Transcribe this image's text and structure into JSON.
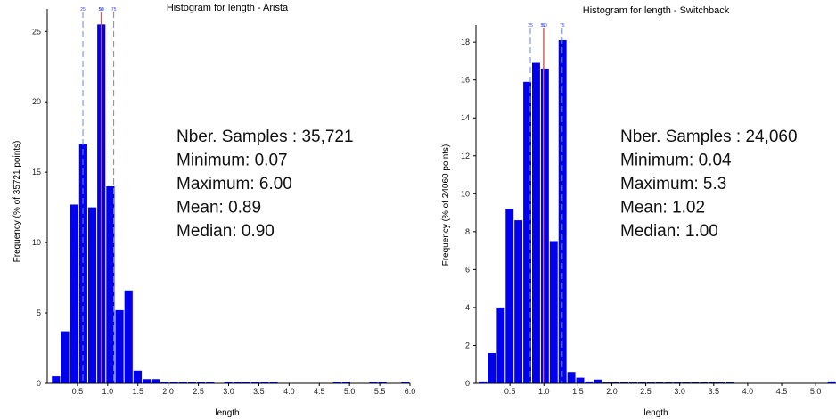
{
  "chart_data": [
    {
      "type": "bar",
      "title": "Histogram for length - Arista",
      "xlabel": "length",
      "ylabel": "Frequency (% of 35721 points)",
      "xlim": [
        0,
        6.0
      ],
      "ylim": [
        0,
        26.6
      ],
      "xticks": [
        "0.5",
        "1.0",
        "1.5",
        "2.0",
        "2.5",
        "3.0",
        "3.5",
        "4.0",
        "4.5",
        "5.0",
        "5.5",
        "6.0"
      ],
      "yticks": [
        "0",
        "5",
        "10",
        "15",
        "20",
        "25"
      ],
      "bin_width": 0.15,
      "bins": [
        {
          "x": 0.07,
          "y": 0.5
        },
        {
          "x": 0.22,
          "y": 3.7
        },
        {
          "x": 0.37,
          "y": 12.7
        },
        {
          "x": 0.52,
          "y": 17.0
        },
        {
          "x": 0.67,
          "y": 12.5
        },
        {
          "x": 0.82,
          "y": 25.5
        },
        {
          "x": 0.97,
          "y": 14.0
        },
        {
          "x": 1.12,
          "y": 5.2
        },
        {
          "x": 1.27,
          "y": 6.6
        },
        {
          "x": 1.42,
          "y": 0.9
        },
        {
          "x": 1.57,
          "y": 0.3
        },
        {
          "x": 1.72,
          "y": 0.3
        },
        {
          "x": 1.87,
          "y": 0.1
        },
        {
          "x": 2.02,
          "y": 0.1
        },
        {
          "x": 2.17,
          "y": 0.1
        },
        {
          "x": 2.32,
          "y": 0.1
        },
        {
          "x": 2.47,
          "y": 0.1
        },
        {
          "x": 2.62,
          "y": 0.1
        },
        {
          "x": 2.92,
          "y": 0.1
        },
        {
          "x": 3.07,
          "y": 0.1
        },
        {
          "x": 3.22,
          "y": 0.1
        },
        {
          "x": 3.37,
          "y": 0.1
        },
        {
          "x": 3.52,
          "y": 0.1
        },
        {
          "x": 3.67,
          "y": 0.1
        },
        {
          "x": 4.72,
          "y": 0.1
        },
        {
          "x": 4.87,
          "y": 0.1
        },
        {
          "x": 5.32,
          "y": 0.1
        },
        {
          "x": 5.47,
          "y": 0.1
        },
        {
          "x": 5.85,
          "y": 0.1
        }
      ],
      "quantile_lines": [
        {
          "label": "25",
          "x": 0.59,
          "color": "#6688dd",
          "dash": true
        },
        {
          "label": "50",
          "x": 0.89,
          "color": "#e03030",
          "dash": false
        },
        {
          "label": "50",
          "x": 0.9,
          "color": "#e07070",
          "dash": false
        },
        {
          "label": "75",
          "x": 1.1,
          "color": "#6688dd",
          "dash": true
        }
      ],
      "stats": [
        "Nber. Samples : 35,721",
        "Minimum: 0.07",
        "Maximum: 6.00",
        "Mean: 0.89",
        "Median: 0.90"
      ],
      "bar_color": "#0000ee",
      "grid": false
    },
    {
      "type": "bar",
      "title": "Histogram for length - Switchback",
      "xlabel": "length",
      "ylabel": "Frequency (% of 24060 points)",
      "xlim": [
        0,
        5.3
      ],
      "ylim": [
        0,
        18.9
      ],
      "xticks": [
        "0.5",
        "1.0",
        "1.5",
        "2.0",
        "2.5",
        "3.0",
        "3.5",
        "4.0",
        "4.5",
        "5.0"
      ],
      "yticks": [
        "0",
        "2",
        "4",
        "6",
        "8",
        "10",
        "12",
        "14",
        "16",
        "18"
      ],
      "bin_width": 0.13,
      "bins": [
        {
          "x": 0.04,
          "y": 0.1
        },
        {
          "x": 0.17,
          "y": 1.6
        },
        {
          "x": 0.3,
          "y": 4.0
        },
        {
          "x": 0.43,
          "y": 9.2
        },
        {
          "x": 0.56,
          "y": 8.6
        },
        {
          "x": 0.69,
          "y": 15.9
        },
        {
          "x": 0.82,
          "y": 16.9
        },
        {
          "x": 0.95,
          "y": 16.6
        },
        {
          "x": 1.08,
          "y": 7.5
        },
        {
          "x": 1.21,
          "y": 18.1
        },
        {
          "x": 1.34,
          "y": 0.6
        },
        {
          "x": 1.47,
          "y": 0.3
        },
        {
          "x": 1.6,
          "y": 0.1
        },
        {
          "x": 1.73,
          "y": 0.2
        },
        {
          "x": 1.86,
          "y": 0.05
        },
        {
          "x": 1.99,
          "y": 0.05
        },
        {
          "x": 2.12,
          "y": 0.05
        },
        {
          "x": 2.25,
          "y": 0.05
        },
        {
          "x": 2.38,
          "y": 0.05
        },
        {
          "x": 2.51,
          "y": 0.05
        },
        {
          "x": 2.64,
          "y": 0.05
        },
        {
          "x": 2.77,
          "y": 0.05
        },
        {
          "x": 2.9,
          "y": 0.05
        },
        {
          "x": 3.03,
          "y": 0.05
        },
        {
          "x": 3.16,
          "y": 0.05
        },
        {
          "x": 3.29,
          "y": 0.05
        },
        {
          "x": 3.42,
          "y": 0.05
        },
        {
          "x": 3.55,
          "y": 0.05
        },
        {
          "x": 3.68,
          "y": 0.05
        },
        {
          "x": 5.17,
          "y": 0.1
        }
      ],
      "quantile_lines": [
        {
          "label": "25",
          "x": 0.8,
          "color": "#6688dd",
          "dash": true
        },
        {
          "label": "50",
          "x": 0.99,
          "color": "#e07070",
          "dash": false
        },
        {
          "label": "50",
          "x": 1.01,
          "color": "#e03030",
          "dash": false
        },
        {
          "label": "75",
          "x": 1.27,
          "color": "#6688dd",
          "dash": true
        }
      ],
      "stats": [
        "Nber. Samples : 24,060",
        "Minimum: 0.04",
        "Maximum: 5.3",
        "Mean: 1.02",
        "Median: 1.00"
      ],
      "bar_color": "#0000ee",
      "grid": false
    }
  ]
}
